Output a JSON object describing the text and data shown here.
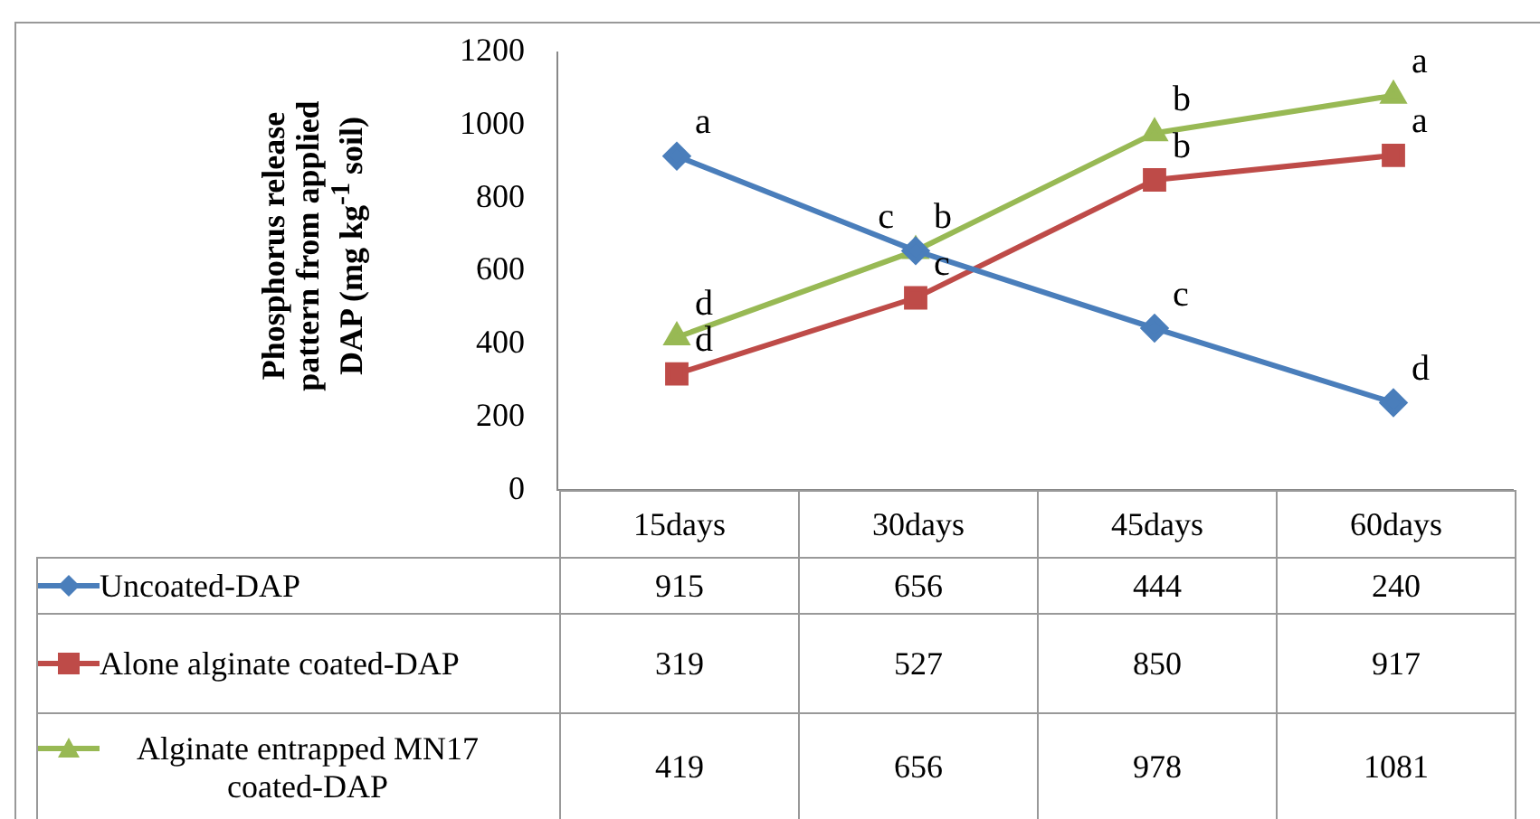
{
  "chart_data": {
    "type": "line",
    "ylabel": "Phosphorus release pattern from applied DAP (mg kg$^{-1}$ soil)",
    "categories": [
      "15days",
      "30days",
      "45days",
      "60days"
    ],
    "series": [
      {
        "name": "Uncoated-DAP",
        "color": "#4a7ebb",
        "marker": "diamond",
        "values": [
          915,
          656,
          444,
          240
        ]
      },
      {
        "name": "Alone alginate coated-DAP",
        "color": "#be4b48",
        "marker": "square",
        "values": [
          319,
          527,
          850,
          917
        ]
      },
      {
        "name": "Alginate entrapped MN17 coated-DAP",
        "color": "#98b954",
        "marker": "triangle",
        "values": [
          419,
          656,
          978,
          1081
        ]
      }
    ],
    "ylim": [
      0,
      1200
    ],
    "yticks": [
      0,
      200,
      400,
      600,
      800,
      1000,
      1200
    ],
    "grid": false,
    "legend": "bottom",
    "data_labels": true,
    "annotations": [
      {
        "text": "a",
        "x": "15days",
        "y": 915
      },
      {
        "text": "d",
        "x": "15days",
        "y": 419
      },
      {
        "text": "d",
        "x": "15days",
        "y": 319
      },
      {
        "text": "b",
        "x": "30days",
        "y": 656
      },
      {
        "text": "c",
        "x": "30days",
        "y": 656
      },
      {
        "text": "c",
        "x": "30days",
        "y": 527
      },
      {
        "text": "b",
        "x": "45days",
        "y": 978
      },
      {
        "text": "b",
        "x": "45days",
        "y": 850
      },
      {
        "text": "c",
        "x": "45days",
        "y": 444
      },
      {
        "text": "a",
        "x": "60days",
        "y": 1081
      },
      {
        "text": "a",
        "x": "60days",
        "y": 917
      },
      {
        "text": "d",
        "x": "60days",
        "y": 240
      }
    ]
  }
}
